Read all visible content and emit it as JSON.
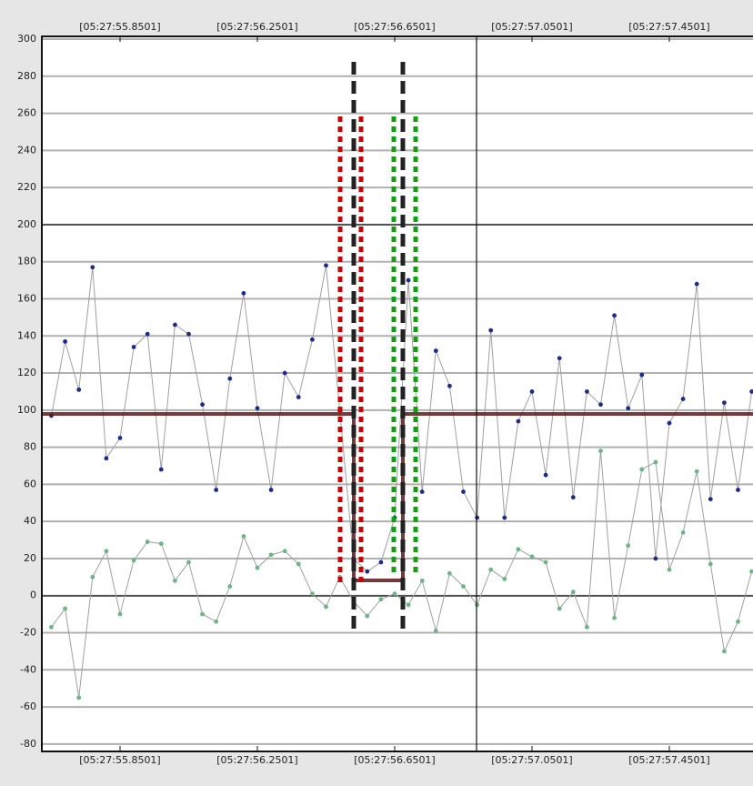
{
  "chart_data": {
    "type": "line",
    "x": [
      55.6501,
      55.6901,
      55.7301,
      55.7701,
      55.8101,
      55.8501,
      55.8901,
      55.9301,
      55.9701,
      56.0101,
      56.0501,
      56.0901,
      56.1301,
      56.1701,
      56.2101,
      56.2501,
      56.2901,
      56.3301,
      56.3701,
      56.4101,
      56.4501,
      56.4901,
      56.5301,
      56.5701,
      56.6101,
      56.6501,
      56.6901,
      56.7301,
      56.7701,
      56.8101,
      56.8501,
      56.8901,
      56.9301,
      56.9701,
      57.0101,
      57.0501,
      57.0901,
      57.1301,
      57.1701,
      57.2101,
      57.2501,
      57.2901,
      57.3301,
      57.3701,
      57.4101,
      57.4501,
      57.4901,
      57.5301,
      57.5701,
      57.6101,
      57.6501,
      57.6901
    ],
    "series": [
      {
        "color": "#1c2a8a",
        "values": [
          97,
          137,
          111,
          177,
          74,
          85,
          134,
          141,
          68,
          146,
          141,
          103,
          57,
          117,
          163,
          101,
          57,
          120,
          107,
          138,
          178,
          100,
          20,
          13,
          18,
          42,
          170,
          56,
          132,
          113,
          56,
          42,
          143,
          42,
          94,
          110,
          65,
          128,
          53,
          110,
          103,
          151,
          101,
          119,
          20,
          93,
          106,
          168,
          52,
          104,
          57,
          110
        ]
      },
      {
        "color": "#6db585",
        "values": [
          -17,
          -7,
          -55,
          10,
          24,
          -10,
          19,
          29,
          28,
          8,
          18,
          -10,
          -14,
          5,
          32,
          15,
          22,
          24,
          17,
          1,
          -6,
          10,
          -3,
          -11,
          -2,
          1,
          -5,
          8,
          -19,
          12,
          5,
          -5,
          14,
          9,
          25,
          21,
          18,
          -7,
          2,
          -17,
          78,
          -12,
          27,
          68,
          72,
          14,
          34,
          67,
          17,
          -30,
          -14,
          13
        ]
      }
    ],
    "xlim": [
      55.6223,
      57.6938
    ],
    "xticks": [
      {
        "value": 55.8501,
        "label": "[05:27:55.8501]"
      },
      {
        "value": 56.2501,
        "label": "[05:27:56.2501]"
      },
      {
        "value": 56.6501,
        "label": "[05:27:56.6501]"
      },
      {
        "value": 57.0501,
        "label": "[05:27:57.0501]"
      },
      {
        "value": 57.4501,
        "label": "[05:27:57.4501]"
      }
    ],
    "ylim": [
      -84,
      300
    ],
    "yticks": [
      -80,
      -60,
      -40,
      -20,
      0,
      20,
      40,
      60,
      80,
      100,
      120,
      140,
      160,
      180,
      200,
      220,
      240,
      260,
      280,
      300
    ],
    "grid": true,
    "line_color": "#a0a0a0"
  }
}
